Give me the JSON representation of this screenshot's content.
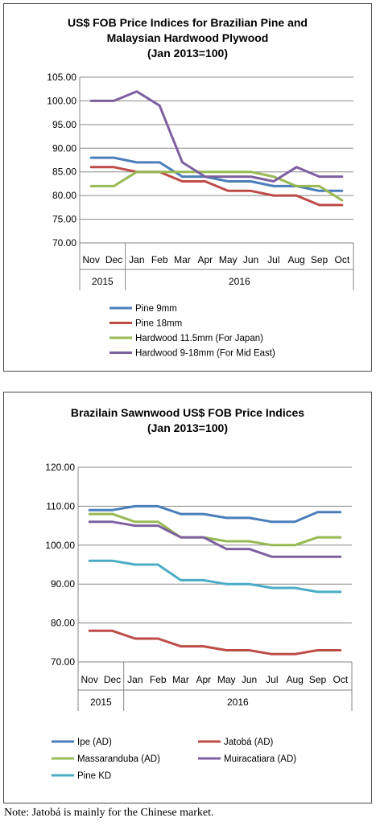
{
  "chart_data": [
    {
      "type": "line",
      "title_lines": [
        "US$ FOB Price Indices for Brazilian Pine and",
        "Malaysian Hardwood Plywood",
        "(Jan 2013=100)"
      ],
      "categories": [
        "Nov",
        "Dec",
        "Jan",
        "Feb",
        "Mar",
        "Apr",
        "May",
        "Jun",
        "Jul",
        "Aug",
        "Sep",
        "Oct"
      ],
      "year_groups": [
        {
          "label": "2015",
          "span": 2
        },
        {
          "label": "2016",
          "span": 10
        }
      ],
      "ylim": [
        70,
        105
      ],
      "yticks": [
        "70.00",
        "75.00",
        "80.00",
        "85.00",
        "90.00",
        "95.00",
        "100.00",
        "105.00"
      ],
      "ytick_values": [
        70,
        75,
        80,
        85,
        90,
        95,
        100,
        105
      ],
      "grid": true,
      "legend_position": "bottom",
      "series": [
        {
          "name": "Pine 9mm",
          "color": "#4a7ebb",
          "values": [
            88,
            88,
            87,
            87,
            84,
            84,
            83,
            83,
            82,
            82,
            81,
            81
          ]
        },
        {
          "name": "Pine 18mm",
          "color": "#be4b48",
          "values": [
            86,
            86,
            85,
            85,
            83,
            83,
            81,
            81,
            80,
            80,
            78,
            78
          ]
        },
        {
          "name": "Hardwood 11.5mm (For Japan)",
          "color": "#98b954",
          "values": [
            82,
            82,
            85,
            85,
            85,
            85,
            85,
            85,
            84,
            82,
            82,
            79
          ]
        },
        {
          "name": "Hardwood 9-18mm (For Mid East)",
          "color": "#7d60a0",
          "values": [
            100,
            100,
            102,
            99,
            87,
            84,
            84,
            84,
            83,
            86,
            84,
            84
          ]
        }
      ]
    },
    {
      "type": "line",
      "title_lines": [
        "Brazilain Sawnwood US$ FOB Price Indices",
        "(Jan 2013=100)"
      ],
      "categories": [
        "Nov",
        "Dec",
        "Jan",
        "Feb",
        "Mar",
        "Apr",
        "May",
        "Jun",
        "Jul",
        "Aug",
        "Sep",
        "Oct"
      ],
      "year_groups": [
        {
          "label": "2015",
          "span": 2
        },
        {
          "label": "2016",
          "span": 10
        }
      ],
      "ylim": [
        70,
        120
      ],
      "yticks": [
        "70.00",
        "80.00",
        "90.00",
        "100.00",
        "110.00",
        "120.00"
      ],
      "ytick_values": [
        70,
        80,
        90,
        100,
        110,
        120
      ],
      "grid": true,
      "legend_position": "bottom",
      "series": [
        {
          "name": "Ipe (AD)",
          "color": "#4a7ebb",
          "values": [
            109,
            109,
            110,
            110,
            108,
            108,
            107,
            107,
            106,
            106,
            108.5,
            108.5
          ]
        },
        {
          "name": "Jatobá (AD)",
          "color": "#be4b48",
          "values": [
            78,
            78,
            76,
            76,
            74,
            74,
            73,
            73,
            72,
            72,
            73,
            73
          ]
        },
        {
          "name": "Massaranduba (AD)",
          "color": "#98b954",
          "values": [
            108,
            108,
            106,
            106,
            102,
            102,
            101,
            101,
            100,
            100,
            102,
            102
          ]
        },
        {
          "name": "Muiracatiara (AD)",
          "color": "#7d60a0",
          "values": [
            106,
            106,
            105,
            105,
            102,
            102,
            99,
            99,
            97,
            97,
            97,
            97
          ]
        },
        {
          "name": "Pine KD",
          "color": "#4bacc6",
          "values": [
            96,
            96,
            95,
            95,
            91,
            91,
            90,
            90,
            89,
            89,
            88,
            88
          ]
        }
      ]
    }
  ],
  "note": "Note: Jatobá is mainly for the Chinese market."
}
